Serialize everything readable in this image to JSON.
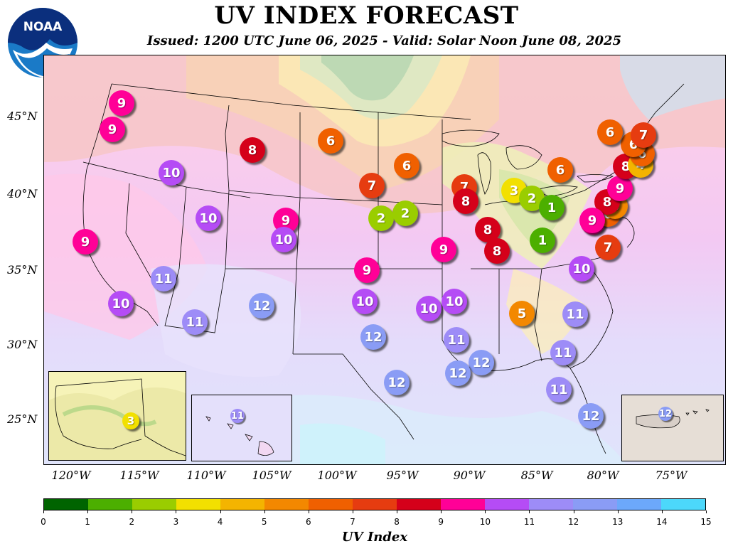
{
  "header": {
    "title": "UV INDEX FORECAST",
    "subtitle": "Issued: 1200 UTC June 06, 2025 - Valid: Solar Noon June 08, 2025",
    "logo_text": "NOAA"
  },
  "axes": {
    "lat_labels": [
      "45°N",
      "40°N",
      "35°N",
      "30°N",
      "25°N"
    ],
    "lon_labels": [
      "120°W",
      "115°W",
      "110°W",
      "105°W",
      "100°W",
      "95°W",
      "90°W",
      "85°W",
      "80°W",
      "75°W"
    ]
  },
  "colorbar": {
    "title": "UV Index",
    "ticks": [
      "0",
      "1",
      "2",
      "3",
      "4",
      "5",
      "6",
      "7",
      "8",
      "9",
      "10",
      "11",
      "12",
      "13",
      "14",
      "15"
    ],
    "colors": [
      "#006400",
      "#4caf00",
      "#9acd00",
      "#f2e000",
      "#f4b400",
      "#f38800",
      "#f06000",
      "#e63c10",
      "#d5001a",
      "#ff0097",
      "#b54cf5",
      "#9d8cf7",
      "#8a9cf5",
      "#6ca8fb",
      "#4cd8fb"
    ]
  },
  "markers": [
    {
      "v": "9",
      "c": "#ff0097"
    },
    {
      "v": "9",
      "c": "#ff0097"
    },
    {
      "v": "10",
      "c": "#b54cf5"
    },
    {
      "v": "8",
      "c": "#d5001a"
    },
    {
      "v": "6",
      "c": "#f06000"
    },
    {
      "v": "10",
      "c": "#b54cf5"
    },
    {
      "v": "9",
      "c": "#ff0097"
    },
    {
      "v": "10",
      "c": "#b54cf5"
    },
    {
      "v": "9",
      "c": "#ff0097"
    },
    {
      "v": "11",
      "c": "#9d8cf7"
    },
    {
      "v": "10",
      "c": "#b54cf5"
    },
    {
      "v": "11",
      "c": "#9d8cf7"
    },
    {
      "v": "12",
      "c": "#8a9cf5"
    },
    {
      "v": "7",
      "c": "#e63c10"
    },
    {
      "v": "2",
      "c": "#9acd00"
    },
    {
      "v": "2",
      "c": "#9acd00"
    },
    {
      "v": "6",
      "c": "#f06000"
    },
    {
      "v": "9",
      "c": "#ff0097"
    },
    {
      "v": "10",
      "c": "#b54cf5"
    },
    {
      "v": "12",
      "c": "#8a9cf5"
    },
    {
      "v": "12",
      "c": "#8a9cf5"
    },
    {
      "v": "10",
      "c": "#b54cf5"
    },
    {
      "v": "9",
      "c": "#ff0097"
    },
    {
      "v": "7",
      "c": "#e63c10"
    },
    {
      "v": "8",
      "c": "#d5001a"
    },
    {
      "v": "8",
      "c": "#d5001a"
    },
    {
      "v": "8",
      "c": "#d5001a"
    },
    {
      "v": "10",
      "c": "#b54cf5"
    },
    {
      "v": "11",
      "c": "#9d8cf7"
    },
    {
      "v": "12",
      "c": "#8a9cf5"
    },
    {
      "v": "12",
      "c": "#8a9cf5"
    },
    {
      "v": "3",
      "c": "#f2e000"
    },
    {
      "v": "2",
      "c": "#9acd00"
    },
    {
      "v": "1",
      "c": "#4caf00"
    },
    {
      "v": "1",
      "c": "#4caf00"
    },
    {
      "v": "6",
      "c": "#f06000"
    },
    {
      "v": "5",
      "c": "#f38800"
    },
    {
      "v": "11",
      "c": "#9d8cf7"
    },
    {
      "v": "11",
      "c": "#9d8cf7"
    },
    {
      "v": "11",
      "c": "#9d8cf7"
    },
    {
      "v": "12",
      "c": "#8a9cf5"
    },
    {
      "v": "10",
      "c": "#b54cf5"
    },
    {
      "v": "7",
      "c": "#e63c10"
    },
    {
      "v": "9",
      "c": "#ff0097"
    },
    {
      "v": "6",
      "c": "#f06000"
    },
    {
      "v": "5",
      "c": "#f38800"
    },
    {
      "v": "8",
      "c": "#d5001a"
    },
    {
      "v": "9",
      "c": "#ff0097"
    },
    {
      "v": "8",
      "c": "#d5001a"
    },
    {
      "v": "4",
      "c": "#f4b400"
    },
    {
      "v": "6",
      "c": "#f06000"
    },
    {
      "v": "6",
      "c": "#f06000"
    },
    {
      "v": "7",
      "c": "#e63c10"
    },
    {
      "v": "6",
      "c": "#f06000"
    },
    {
      "v": "9",
      "c": "#ff0097"
    }
  ],
  "insets": {
    "alaska": {
      "v": "3",
      "c": "#f2e000"
    },
    "hawaii": {
      "v": "11",
      "c": "#9d8cf7"
    },
    "puerto_rico": {
      "v": "12",
      "c": "#8a9cf5"
    }
  }
}
